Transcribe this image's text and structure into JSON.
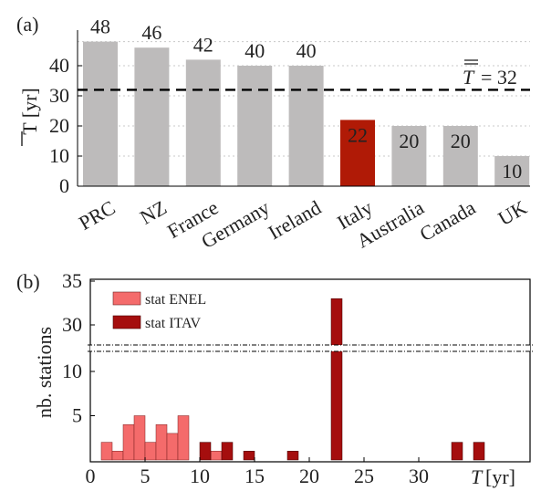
{
  "chart_data": [
    {
      "panel_label": "(a)",
      "type": "bar",
      "ylabel": "T [yr]",
      "ylim": [
        0,
        48
      ],
      "yticks": [
        0,
        10,
        20,
        30,
        40
      ],
      "grid": "horizontal dotted",
      "categories": [
        "PRC",
        "NZ",
        "France",
        "Germany",
        "Ireland",
        "Italy",
        "Australia",
        "Canada",
        "UK"
      ],
      "values": [
        48,
        46,
        42,
        40,
        40,
        22,
        20,
        20,
        10
      ],
      "value_labels": [
        "48",
        "46",
        "42",
        "40",
        "40",
        "22",
        "20",
        "20",
        "10"
      ],
      "highlight_category": "Italy",
      "colors": {
        "bar": "#bdbbbb",
        "highlight": "#b01a06",
        "reference": "#000000"
      },
      "reference_line": {
        "value": 32,
        "label_symbol": "T",
        "label_text": "= 32"
      }
    },
    {
      "panel_label": "(b)",
      "type": "bar",
      "ylabel": "nb. stations",
      "xlabel": "T [yr]",
      "xlim": [
        0,
        35
      ],
      "xticks": [
        0,
        5,
        10,
        15,
        20,
        25,
        30
      ],
      "yticks_lower": [
        5,
        10
      ],
      "yticks_upper": [
        30,
        35
      ],
      "axis_break": [
        12,
        27
      ],
      "legend_position": "top-left",
      "series": [
        {
          "name": "stat ENEL",
          "color": "#f46b6b",
          "points": [
            [
              1.5,
              2
            ],
            [
              2.5,
              1
            ],
            [
              3.5,
              4
            ],
            [
              4.5,
              5
            ],
            [
              5.5,
              2
            ],
            [
              6.5,
              4
            ],
            [
              7.5,
              3
            ],
            [
              8.5,
              5
            ],
            [
              11.5,
              1
            ]
          ]
        },
        {
          "name": "stat ITAV",
          "color": "#a50e0e",
          "points": [
            [
              10.5,
              2
            ],
            [
              12.5,
              2
            ],
            [
              14.5,
              1
            ],
            [
              18.5,
              1
            ],
            [
              22.5,
              33
            ],
            [
              33.5,
              2
            ],
            [
              35.5,
              2
            ]
          ]
        }
      ]
    }
  ]
}
